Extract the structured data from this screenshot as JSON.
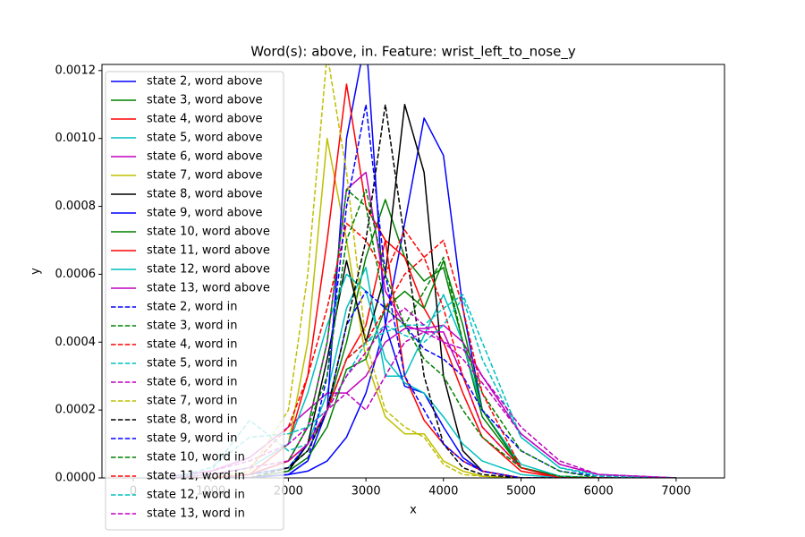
{
  "chart_data": {
    "type": "line",
    "title": "Word(s): above, in. Feature: wrist_left_to_nose_y",
    "x_label": "x",
    "y_label": "y",
    "xlim": [
      -404,
      7624
    ],
    "ylim": [
      0,
      0.001218
    ],
    "xticks": [
      0,
      1000,
      2000,
      3000,
      4000,
      5000,
      6000,
      7000
    ],
    "yticks": [
      {
        "value": 0,
        "label": "0.0000"
      },
      {
        "value": 0.0002,
        "label": "0.0002"
      },
      {
        "value": 0.0004,
        "label": "0.0004"
      },
      {
        "value": 0.0006,
        "label": "0.0006"
      },
      {
        "value": 0.0008,
        "label": "0.0008"
      },
      {
        "value": 0.001,
        "label": "0.0010"
      },
      {
        "value": 0.0012,
        "label": "0.0012"
      }
    ],
    "legend": "upper left",
    "x": [
      500,
      1000,
      1500,
      2000,
      2250,
      2500,
      2750,
      3000,
      3250,
      3500,
      3750,
      4000,
      4250,
      4500,
      5000,
      5500,
      6000,
      7000
    ],
    "series": [
      {
        "name": "state 2, word above",
        "color": "#0000ff",
        "linestyle": "solid",
        "values": [
          0,
          0,
          0,
          1e-05,
          2e-05,
          5e-05,
          0.00012,
          0.00025,
          0.00045,
          0.00075,
          0.00106,
          0.00095,
          0.0005,
          0.0002,
          3e-05,
          5e-06,
          0,
          0
        ]
      },
      {
        "name": "state 3, word above",
        "color": "#008000",
        "linestyle": "solid",
        "values": [
          0,
          0,
          1e-05,
          3e-05,
          8e-05,
          0.0002,
          0.0004,
          0.00065,
          0.00082,
          0.00065,
          0.00058,
          0.00062,
          0.0004,
          0.00018,
          3e-05,
          5e-06,
          0,
          0
        ]
      },
      {
        "name": "state 4, word above",
        "color": "#ff0000",
        "linestyle": "solid",
        "values": [
          0,
          0,
          1e-05,
          5e-05,
          0.0001,
          0.0002,
          0.00035,
          0.00045,
          0.0007,
          0.00065,
          0.0005,
          0.0004,
          0.00025,
          0.00012,
          2e-05,
          0,
          0,
          0
        ]
      },
      {
        "name": "state 5, word above",
        "color": "#00bfbf",
        "linestyle": "solid",
        "values": [
          0,
          0,
          1e-05,
          3e-05,
          0.0001,
          0.00025,
          0.0005,
          0.00062,
          0.0003,
          0.0003,
          0.00042,
          0.00054,
          0.0004,
          0.0002,
          4e-05,
          5e-06,
          0,
          0
        ]
      },
      {
        "name": "state 6, word above",
        "color": "#bf00bf",
        "linestyle": "solid",
        "values": [
          5e-06,
          2e-05,
          6e-05,
          0.00015,
          0.0002,
          0.00025,
          0.00025,
          0.0003,
          0.0004,
          0.00044,
          0.00044,
          0.00045,
          0.0004,
          0.0003,
          0.00013,
          4e-05,
          1e-05,
          0
        ]
      },
      {
        "name": "state 7, word above",
        "color": "#bfbf00",
        "linestyle": "solid",
        "values": [
          0,
          0,
          1e-05,
          0.0001,
          0.0004,
          0.001,
          0.0007,
          0.00035,
          0.00018,
          0.00013,
          0.00013,
          5e-05,
          2e-05,
          5e-06,
          0,
          0,
          0,
          0
        ]
      },
      {
        "name": "state 8, word above",
        "color": "#000000",
        "linestyle": "solid",
        "values": [
          0,
          0,
          0,
          2e-05,
          0.0001,
          0.00035,
          0.00064,
          0.0004,
          0.0006,
          0.0011,
          0.0009,
          0.0003,
          8e-05,
          2e-05,
          0,
          0,
          0,
          0
        ]
      },
      {
        "name": "state 9, word above",
        "color": "#0000ff",
        "linestyle": "solid",
        "values": [
          0,
          0,
          0,
          1e-05,
          5e-05,
          0.0002,
          0.001,
          0.0013,
          0.00045,
          0.00027,
          0.00025,
          0.00015,
          6e-05,
          2e-05,
          0,
          0,
          0,
          0
        ]
      },
      {
        "name": "state 10, word above",
        "color": "#008000",
        "linestyle": "solid",
        "values": [
          0,
          0,
          0,
          2e-05,
          6e-05,
          0.00015,
          0.00032,
          0.00035,
          0.0005,
          0.00055,
          0.0005,
          0.00064,
          0.00045,
          0.0002,
          3e-05,
          0,
          0,
          0
        ]
      },
      {
        "name": "state 11, word above",
        "color": "#ff0000",
        "linestyle": "solid",
        "values": [
          0,
          0,
          1e-05,
          0.0001,
          0.0003,
          0.0007,
          0.00116,
          0.0008,
          0.0007,
          0.0003,
          0.00017,
          0.0001,
          5e-05,
          2e-05,
          0,
          0,
          0,
          0
        ]
      },
      {
        "name": "state 12, word above",
        "color": "#00bfbf",
        "linestyle": "solid",
        "values": [
          0,
          1e-05,
          3e-05,
          0.0001,
          0.00025,
          0.00045,
          0.0006,
          0.00055,
          0.00035,
          0.00028,
          0.00025,
          0.00018,
          0.0001,
          5e-05,
          1e-05,
          0,
          0,
          0
        ]
      },
      {
        "name": "state 13, word above",
        "color": "#bf00bf",
        "linestyle": "solid",
        "values": [
          0,
          0,
          1e-05,
          5e-05,
          0.00015,
          0.0004,
          0.00085,
          0.0009,
          0.00055,
          0.00045,
          0.00043,
          0.00043,
          0.0003,
          0.00015,
          3e-05,
          0,
          0,
          0
        ]
      },
      {
        "name": "state 2, word in",
        "color": "#0000ff",
        "linestyle": "dashed",
        "values": [
          0,
          0,
          1e-05,
          3e-05,
          0.0001,
          0.0002,
          0.00045,
          0.00055,
          0.0005,
          0.00045,
          0.00038,
          0.00035,
          0.0003,
          0.0002,
          8e-05,
          2e-05,
          5e-06,
          0
        ]
      },
      {
        "name": "state 3, word in",
        "color": "#008000",
        "linestyle": "dashed",
        "values": [
          0,
          0,
          1e-05,
          5e-05,
          0.00015,
          0.0004,
          0.00085,
          0.0008,
          0.0005,
          0.00045,
          0.00055,
          0.00065,
          0.0004,
          0.00025,
          8e-05,
          2e-05,
          0,
          0
        ]
      },
      {
        "name": "state 4, word in",
        "color": "#ff0000",
        "linestyle": "dashed",
        "values": [
          0,
          1e-05,
          3e-05,
          0.00015,
          0.0003,
          0.0005,
          0.00075,
          0.0007,
          0.0006,
          0.00073,
          0.00065,
          0.0005,
          0.0003,
          0.00015,
          3e-05,
          0,
          0,
          0
        ]
      },
      {
        "name": "state 5, word in",
        "color": "#00bfbf",
        "linestyle": "dashed",
        "values": [
          0,
          2e-05,
          0.00017,
          8e-05,
          0.0001,
          0.0002,
          0.00035,
          0.0004,
          0.00045,
          0.00042,
          0.0004,
          0.00045,
          0.00053,
          0.00035,
          0.00012,
          3e-05,
          1e-05,
          0
        ]
      },
      {
        "name": "state 6, word in",
        "color": "#bf00bf",
        "linestyle": "dashed",
        "values": [
          5e-06,
          2e-05,
          5e-05,
          0.0001,
          0.00015,
          0.0002,
          0.00025,
          0.0002,
          0.0003,
          0.0004,
          0.00043,
          0.0004,
          0.00038,
          0.0003,
          0.00015,
          5e-05,
          1e-05,
          0
        ]
      },
      {
        "name": "state 7, word in",
        "color": "#bfbf00",
        "linestyle": "dashed",
        "values": [
          0,
          0,
          2e-05,
          0.0002,
          0.0006,
          0.00125,
          0.0009,
          0.0004,
          0.0002,
          0.00015,
          0.00012,
          4e-05,
          1e-05,
          5e-06,
          0,
          0,
          0,
          0
        ]
      },
      {
        "name": "state 8, word in",
        "color": "#000000",
        "linestyle": "dashed",
        "values": [
          0,
          0,
          0,
          3e-05,
          8e-05,
          0.0002,
          0.00045,
          0.0007,
          0.0011,
          0.0007,
          0.0003,
          0.0001,
          3e-05,
          1e-05,
          0,
          0,
          0,
          0
        ]
      },
      {
        "name": "state 9, word in",
        "color": "#0000ff",
        "linestyle": "dashed",
        "values": [
          0,
          0,
          0,
          1e-05,
          5e-05,
          0.0003,
          0.0008,
          0.0011,
          0.0006,
          0.0003,
          0.0002,
          0.0001,
          5e-05,
          2e-05,
          0,
          0,
          0,
          0
        ]
      },
      {
        "name": "state 10, word in",
        "color": "#008000",
        "linestyle": "dashed",
        "values": [
          0,
          0,
          1e-05,
          5e-05,
          0.00015,
          0.0003,
          0.0007,
          0.00085,
          0.0006,
          0.00045,
          0.00035,
          0.0003,
          0.0002,
          0.00012,
          3e-05,
          5e-06,
          0,
          0
        ]
      },
      {
        "name": "state 11, word in",
        "color": "#ff0000",
        "linestyle": "dashed",
        "values": [
          0,
          0,
          1e-05,
          5e-05,
          0.0001,
          0.0002,
          0.00035,
          0.0004,
          0.0005,
          0.0006,
          0.00065,
          0.0007,
          0.0005,
          0.00025,
          3e-05,
          0,
          0,
          0
        ]
      },
      {
        "name": "state 12, word in",
        "color": "#00bfbf",
        "linestyle": "dashed",
        "values": [
          0,
          3e-05,
          0.00012,
          0.00013,
          0.00015,
          0.0002,
          0.0003,
          0.0004,
          0.00043,
          0.00045,
          0.00045,
          0.0005,
          0.00054,
          0.0004,
          0.00012,
          3e-05,
          5e-06,
          0
        ]
      },
      {
        "name": "state 13, word in",
        "color": "#bf00bf",
        "linestyle": "dashed",
        "values": [
          0,
          1e-05,
          3e-05,
          5e-05,
          0.0001,
          0.0002,
          0.0003,
          0.00037,
          0.00045,
          0.0005,
          0.00045,
          0.0004,
          0.00035,
          0.00028,
          0.00013,
          4e-05,
          1e-05,
          0
        ]
      }
    ]
  }
}
